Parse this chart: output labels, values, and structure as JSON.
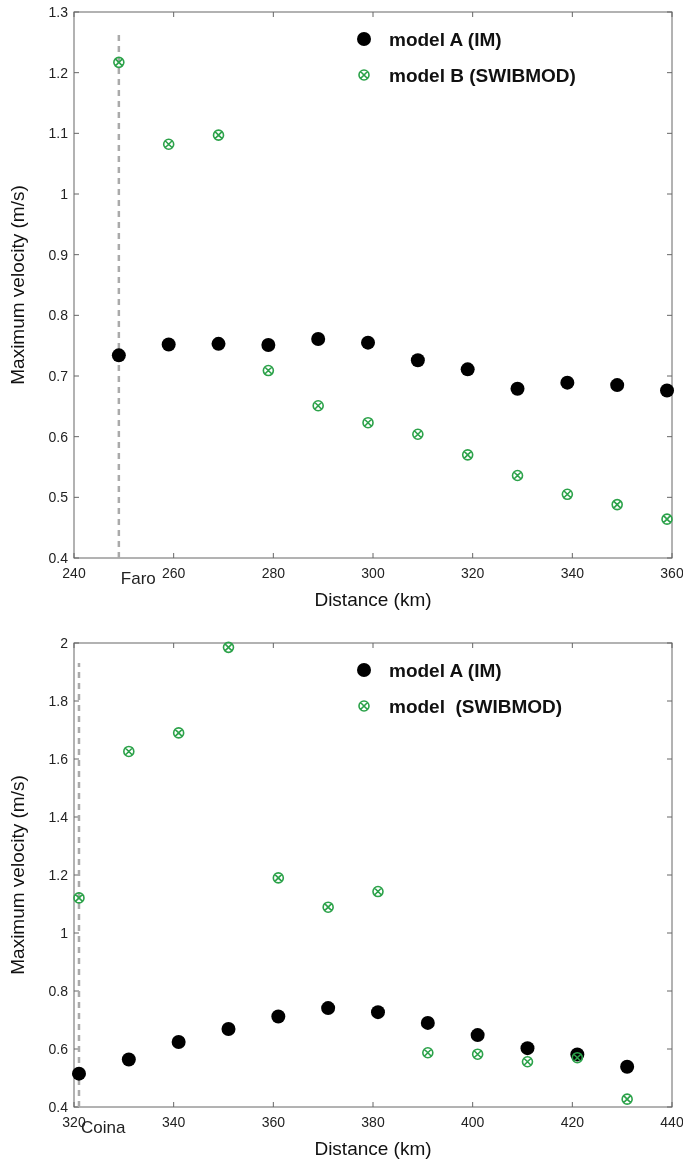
{
  "chart_data": [
    {
      "type": "scatter",
      "xlabel": "Distance (km)",
      "ylabel": "Maximum velocity (m/s)",
      "xlim": [
        240,
        360
      ],
      "xticks": [
        240,
        260,
        280,
        300,
        320,
        340,
        360
      ],
      "ylim": [
        0.4,
        1.3
      ],
      "yticks": [
        0.4,
        0.5,
        0.6,
        0.7,
        0.8,
        0.9,
        1,
        1.1,
        1.2,
        1.3
      ],
      "grid": false,
      "legend": "top right",
      "x": [
        249,
        259,
        269,
        279,
        289,
        299,
        309,
        319,
        329,
        339,
        349,
        359
      ],
      "series": [
        {
          "name": "model A (IM)",
          "color": "#000000",
          "marker": "circle",
          "values": [
            0.734,
            0.752,
            0.753,
            0.751,
            0.761,
            0.755,
            0.726,
            0.711,
            0.679,
            0.689,
            0.685,
            0.676
          ]
        },
        {
          "name": "model B (SWIBMOD)",
          "color": "#2ca24a",
          "marker": "cross",
          "values": [
            1.217,
            1.082,
            1.097,
            0.709,
            0.651,
            0.623,
            0.604,
            0.57,
            0.536,
            0.505,
            0.488,
            0.464
          ]
        }
      ],
      "ref_lines": [
        {
          "axis": "x",
          "value": 249,
          "label": "Faro",
          "color": "#aaaaaa",
          "line_style": "dashed"
        }
      ]
    },
    {
      "type": "scatter",
      "xlabel": "Distance (km)",
      "ylabel": "Maximum velocity (m/s)",
      "xlim": [
        320,
        440
      ],
      "xticks": [
        320,
        340,
        360,
        380,
        400,
        420,
        440
      ],
      "ylim": [
        0.4,
        2
      ],
      "yticks": [
        0.4,
        0.6,
        0.8,
        1,
        1.2,
        1.4,
        1.6,
        1.8,
        2
      ],
      "grid": false,
      "legend": "top right",
      "x": [
        321,
        331,
        341,
        351,
        361,
        371,
        381,
        391,
        401,
        411,
        421,
        431
      ],
      "series": [
        {
          "name": "model A (IM)",
          "color": "#000000",
          "marker": "circle",
          "values": [
            0.515,
            0.564,
            0.624,
            0.669,
            0.712,
            0.741,
            0.727,
            0.69,
            0.648,
            0.603,
            0.581,
            0.539
          ]
        },
        {
          "name": "model  (SWIBMOD)",
          "color": "#2ca24a",
          "marker": "cross",
          "values": [
            1.121,
            1.626,
            1.69,
            1.985,
            1.19,
            1.089,
            1.143,
            0.587,
            0.582,
            0.556,
            0.57,
            0.427
          ]
        }
      ],
      "ref_lines": [
        {
          "axis": "x",
          "value": 321,
          "label": "Coina",
          "color": "#aaaaaa",
          "line_style": "dashed"
        }
      ]
    }
  ]
}
